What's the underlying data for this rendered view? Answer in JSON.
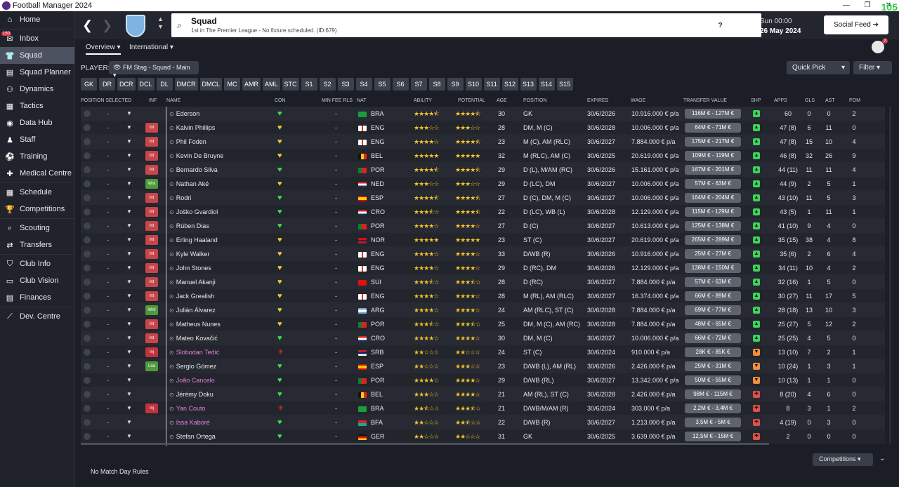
{
  "app": {
    "title": "Football Manager 2024",
    "fps": "105"
  },
  "sidebar": {
    "inbox_badge": "150",
    "items": [
      {
        "label": "Home",
        "icon": "home-icon",
        "glyph": "⌂"
      },
      {
        "label": "Inbox",
        "icon": "inbox-icon",
        "glyph": "✉"
      },
      {
        "label": "Squad",
        "icon": "squad-icon",
        "glyph": "👕"
      },
      {
        "label": "Squad Planner",
        "icon": "planner-icon",
        "glyph": "▤"
      },
      {
        "label": "Dynamics",
        "icon": "dynamics-icon",
        "glyph": "⚇"
      },
      {
        "label": "Tactics",
        "icon": "tactics-icon",
        "glyph": "▦"
      },
      {
        "label": "Data Hub",
        "icon": "datahub-icon",
        "glyph": "◉"
      },
      {
        "label": "Staff",
        "icon": "staff-icon",
        "glyph": "♟"
      },
      {
        "label": "Training",
        "icon": "training-icon",
        "glyph": "⚽"
      },
      {
        "label": "Medical Centre",
        "icon": "medical-icon",
        "glyph": "✚"
      },
      {
        "label": "Schedule",
        "icon": "schedule-icon",
        "glyph": "▦"
      },
      {
        "label": "Competitions",
        "icon": "trophy-icon",
        "glyph": "🏆"
      },
      {
        "label": "Scouting",
        "icon": "scouting-icon",
        "glyph": "⌕"
      },
      {
        "label": "Transfers",
        "icon": "transfers-icon",
        "glyph": "⇄"
      },
      {
        "label": "Club Info",
        "icon": "shield-icon",
        "glyph": "⛉"
      },
      {
        "label": "Club Vision",
        "icon": "vision-icon",
        "glyph": "▭"
      },
      {
        "label": "Finances",
        "icon": "finances-icon",
        "glyph": "▤"
      },
      {
        "label": "Dev. Centre",
        "icon": "devcentre-icon",
        "glyph": "⟋"
      }
    ]
  },
  "header": {
    "title": "Squad",
    "subtitle": "1st in The Premier League - No fixture scheduled. (ID:679)",
    "date_line1": "Sun 00:00",
    "date_line2": "26 May 2024",
    "social": "Social Feed",
    "fm": "FM",
    "avatar_badge": "7"
  },
  "subtabs": {
    "overview": "Overview",
    "international": "International"
  },
  "players_bar": {
    "label": "PLAYERS",
    "view": "FM Stag - Squad - Main",
    "quick_pick": "Quick Pick",
    "filter": "Filter"
  },
  "positions": [
    "GK",
    "DR",
    "DCR",
    "DCL",
    "DL",
    "DMCR",
    "DMCL",
    "MC",
    "AMR",
    "AML",
    "STC",
    "S1",
    "S2",
    "S3",
    "S4",
    "S5",
    "S6",
    "S7",
    "S8",
    "S9",
    "S10",
    "S11",
    "S12",
    "S13",
    "S14",
    "S15"
  ],
  "columns": {
    "position_selected": "POSITION SELECTED",
    "inf": "INF",
    "name": "NAME",
    "con": "CON",
    "min_fee": "MIN FEE RLS",
    "nat": "NAT",
    "ability": "ABILITY",
    "potential": "POTENTIAL",
    "age": "AGE",
    "position": "POSITION",
    "expires": "EXPIRES",
    "wage": "WAGE",
    "transfer_value": "TRANSFER VALUE",
    "shp": "SHP",
    "apps": "APPS",
    "gls": "GLS",
    "ast": "AST",
    "pom": "POM"
  },
  "colors": {
    "accent": "#f2c12e",
    "int_tag": "#c8454a",
    "wnt_tag": "#4f9a3e",
    "con_green": "#3ddc4a",
    "con_yellow": "#e8c53a",
    "shp_green": "#3ed35a",
    "shp_orange": "#f0903a",
    "shp_red": "#e0504a"
  },
  "players": [
    {
      "name": "Ederson",
      "inf": "",
      "pink": false,
      "pos_sel": "-",
      "con": "green",
      "fee": "-",
      "nat": "BRA",
      "ability": 4.5,
      "potential": 4.5,
      "age": "30",
      "position": "GK",
      "expires": "30/6/2026",
      "wage": "10.916.000 € p/a",
      "tv": "116M € - 127M €",
      "shp": "green",
      "apps": "60",
      "gls": "0",
      "ast": "0",
      "pom": "2"
    },
    {
      "name": "Kalvin Phillips",
      "inf": "Int",
      "pink": false,
      "pos_sel": "-",
      "con": "yellow",
      "fee": "-",
      "nat": "ENG",
      "ability": 3,
      "potential": 3,
      "age": "28",
      "position": "DM, M (C)",
      "expires": "30/6/2028",
      "wage": "10.006.000 € p/a",
      "tv": "64M € - 71M €",
      "shp": "green",
      "apps": "47 (8)",
      "gls": "6",
      "ast": "11",
      "pom": "0"
    },
    {
      "name": "Phil Foden",
      "inf": "Int",
      "pink": false,
      "pos_sel": "-",
      "con": "yellow",
      "fee": "-",
      "nat": "ENG",
      "ability": 4,
      "potential": 4.5,
      "age": "23",
      "position": "M (C), AM (RLC)",
      "expires": "30/6/2027",
      "wage": "7.884.000 € p/a",
      "tv": "175M € - 217M €",
      "shp": "green",
      "apps": "47 (8)",
      "gls": "15",
      "ast": "10",
      "pom": "4"
    },
    {
      "name": "Kevin De Bruyne",
      "inf": "Int",
      "pink": false,
      "pos_sel": "-",
      "con": "yellow",
      "fee": "-",
      "nat": "BEL",
      "ability": 5,
      "potential": 5,
      "age": "32",
      "position": "M (RLC), AM (C)",
      "expires": "30/6/2025",
      "wage": "20.619.000 € p/a",
      "tv": "109M € - 119M €",
      "shp": "green",
      "apps": "46 (8)",
      "gls": "32",
      "ast": "26",
      "pom": "9"
    },
    {
      "name": "Bernardo Silva",
      "inf": "Int",
      "pink": false,
      "pos_sel": "-",
      "con": "green",
      "fee": "-",
      "nat": "POR",
      "ability": 4.5,
      "potential": 4.5,
      "age": "29",
      "position": "D (L), M/AM (RC)",
      "expires": "30/6/2026",
      "wage": "15.161.000 € p/a",
      "tv": "167M € - 201M €",
      "shp": "green",
      "apps": "44 (11)",
      "gls": "11",
      "ast": "11",
      "pom": "4"
    },
    {
      "name": "Nathan Aké",
      "inf": "Wnt",
      "pink": false,
      "pos_sel": "-",
      "con": "yellow",
      "fee": "-",
      "nat": "NED",
      "ability": 3,
      "potential": 3,
      "age": "29",
      "position": "D (LC), DM",
      "expires": "30/6/2027",
      "wage": "10.006.000 € p/a",
      "tv": "57M € - 63M €",
      "shp": "green",
      "apps": "44 (9)",
      "gls": "2",
      "ast": "5",
      "pom": "1"
    },
    {
      "name": "Rodri",
      "inf": "Int",
      "pink": false,
      "pos_sel": "-",
      "con": "green",
      "fee": "-",
      "nat": "ESP",
      "ability": 4.5,
      "potential": 4.5,
      "age": "27",
      "position": "D (C), DM, M (C)",
      "expires": "30/6/2027",
      "wage": "10.006.000 € p/a",
      "tv": "164M € - 204M €",
      "shp": "green",
      "apps": "43 (10)",
      "gls": "11",
      "ast": "5",
      "pom": "3"
    },
    {
      "name": "Joško Gvardiol",
      "inf": "Int",
      "pink": false,
      "pos_sel": "-",
      "con": "green",
      "fee": "-",
      "nat": "CRO",
      "ability": 3.5,
      "potential": 4.5,
      "age": "22",
      "position": "D (LC), WB (L)",
      "expires": "30/6/2028",
      "wage": "12.129.000 € p/a",
      "tv": "115M € - 129M €",
      "shp": "green",
      "apps": "43 (5)",
      "gls": "1",
      "ast": "11",
      "pom": "1"
    },
    {
      "name": "Rúben Dias",
      "inf": "Int",
      "pink": false,
      "pos_sel": "-",
      "con": "green",
      "fee": "-",
      "nat": "POR",
      "ability": 4,
      "potential": 4,
      "age": "27",
      "position": "D (C)",
      "expires": "30/6/2027",
      "wage": "10.613.000 € p/a",
      "tv": "125M € - 138M €",
      "shp": "green",
      "apps": "41 (10)",
      "gls": "9",
      "ast": "4",
      "pom": "0"
    },
    {
      "name": "Erling Haaland",
      "inf": "Int",
      "pink": false,
      "pos_sel": "-",
      "con": "yellow",
      "fee": "-",
      "nat": "NOR",
      "ability": 5,
      "potential": 5,
      "age": "23",
      "position": "ST (C)",
      "expires": "30/6/2027",
      "wage": "20.619.000 € p/a",
      "tv": "265M € - 289M €",
      "shp": "green",
      "apps": "35 (15)",
      "gls": "38",
      "ast": "4",
      "pom": "8"
    },
    {
      "name": "Kyle Walker",
      "inf": "Int",
      "pink": false,
      "pos_sel": "-",
      "con": "yellow",
      "fee": "-",
      "nat": "ENG",
      "ability": 4,
      "potential": 4,
      "age": "33",
      "position": "D/WB (R)",
      "expires": "30/6/2026",
      "wage": "10.916.000 € p/a",
      "tv": "25M € - 27M €",
      "shp": "green",
      "apps": "35 (6)",
      "gls": "2",
      "ast": "6",
      "pom": "4"
    },
    {
      "name": "John Stones",
      "inf": "Int",
      "pink": false,
      "pos_sel": "-",
      "con": "yellow",
      "fee": "-",
      "nat": "ENG",
      "ability": 4,
      "potential": 4,
      "age": "29",
      "position": "D (RC), DM",
      "expires": "30/6/2026",
      "wage": "12.129.000 € p/a",
      "tv": "138M € - 150M €",
      "shp": "green",
      "apps": "34 (11)",
      "gls": "10",
      "ast": "4",
      "pom": "2"
    },
    {
      "name": "Manuel Akanji",
      "inf": "Int",
      "pink": false,
      "pos_sel": "-",
      "con": "yellow",
      "fee": "-",
      "nat": "SUI",
      "ability": 3.5,
      "potential": 3.5,
      "age": "28",
      "position": "D (RC)",
      "expires": "30/6/2027",
      "wage": "7.884.000 € p/a",
      "tv": "57M € - 63M €",
      "shp": "green",
      "apps": "32 (16)",
      "gls": "1",
      "ast": "5",
      "pom": "0"
    },
    {
      "name": "Jack Grealish",
      "inf": "Int",
      "pink": false,
      "pos_sel": "-",
      "con": "yellow",
      "fee": "-",
      "nat": "ENG",
      "ability": 4,
      "potential": 4,
      "age": "28",
      "position": "M (RL), AM (RLC)",
      "expires": "30/6/2027",
      "wage": "16.374.000 € p/a",
      "tv": "66M € - 89M €",
      "shp": "green",
      "apps": "30 (27)",
      "gls": "11",
      "ast": "17",
      "pom": "5"
    },
    {
      "name": "Julián Álvarez",
      "inf": "Wnt",
      "pink": false,
      "pos_sel": "-",
      "con": "yellow",
      "fee": "-",
      "nat": "ARG",
      "ability": 4,
      "potential": 4,
      "age": "24",
      "position": "AM (RLC), ST (C)",
      "expires": "30/6/2028",
      "wage": "7.884.000 € p/a",
      "tv": "69M € - 77M €",
      "shp": "green",
      "apps": "28 (18)",
      "gls": "13",
      "ast": "10",
      "pom": "3"
    },
    {
      "name": "Matheus Nunes",
      "inf": "Int",
      "pink": false,
      "pos_sel": "-",
      "con": "yellow",
      "fee": "-",
      "nat": "POR",
      "ability": 3.5,
      "potential": 3.5,
      "age": "25",
      "position": "DM, M (C), AM (RC)",
      "expires": "30/6/2028",
      "wage": "7.884.000 € p/a",
      "tv": "48M € - 65M €",
      "shp": "green",
      "apps": "25 (27)",
      "gls": "5",
      "ast": "12",
      "pom": "2"
    },
    {
      "name": "Mateo Kovačić",
      "inf": "Int",
      "pink": false,
      "pos_sel": "-",
      "con": "green",
      "fee": "-",
      "nat": "CRO",
      "ability": 4,
      "potential": 4,
      "age": "30",
      "position": "DM, M (C)",
      "expires": "30/6/2027",
      "wage": "10.006.000 € p/a",
      "tv": "66M € - 72M €",
      "shp": "green",
      "apps": "25 (25)",
      "gls": "4",
      "ast": "5",
      "pom": "0"
    },
    {
      "name": "Slobodan Tedić",
      "inf": "Inj",
      "pink": true,
      "pos_sel": "-",
      "con": "red",
      "fee": "-",
      "nat": "SRB",
      "ability": 2,
      "potential": 2,
      "age": "24",
      "position": "ST (C)",
      "expires": "30/6/2024",
      "wage": "910.000 € p/a",
      "tv": "28K € - 85K €",
      "shp": "orange",
      "apps": "13 (10)",
      "gls": "7",
      "ast": "2",
      "pom": "1"
    },
    {
      "name": "Sergio Gómez",
      "inf": "Loa",
      "pink": false,
      "pos_sel": "-",
      "con": "green",
      "fee": "-",
      "nat": "ESP",
      "ability": 2,
      "potential": 3,
      "age": "23",
      "position": "D/WB (L), AM (RL)",
      "expires": "30/6/2026",
      "wage": "2.426.000 € p/a",
      "tv": "25M € - 31M €",
      "shp": "orange",
      "apps": "10 (24)",
      "gls": "1",
      "ast": "3",
      "pom": "1"
    },
    {
      "name": "João Cancelo",
      "inf": "",
      "pink": true,
      "pos_sel": "-",
      "con": "green",
      "fee": "-",
      "nat": "POR",
      "ability": 4,
      "potential": 4,
      "age": "29",
      "position": "D/WB (RL)",
      "expires": "30/6/2027",
      "wage": "13.342.000 € p/a",
      "tv": "50M € - 55M €",
      "shp": "orange",
      "apps": "10 (13)",
      "gls": "1",
      "ast": "1",
      "pom": "0"
    },
    {
      "name": "Jérémy Doku",
      "inf": "",
      "pink": false,
      "pos_sel": "-",
      "con": "green",
      "fee": "-",
      "nat": "BEL",
      "ability": 3,
      "potential": 4,
      "age": "21",
      "position": "AM (RL), ST (C)",
      "expires": "30/6/2028",
      "wage": "2.426.000 € p/a",
      "tv": "98M € - 115M €",
      "shp": "red",
      "apps": "8 (20)",
      "gls": "4",
      "ast": "6",
      "pom": "0"
    },
    {
      "name": "Yan Couto",
      "inf": "Inj",
      "pink": true,
      "pos_sel": "-",
      "con": "red",
      "fee": "-",
      "nat": "BRA",
      "ability": 2.5,
      "potential": 3.5,
      "age": "21",
      "position": "D/WB/M/AM (R)",
      "expires": "30/6/2024",
      "wage": "303.000 € p/a",
      "tv": "2,2M € - 3,4M €",
      "shp": "red",
      "apps": "8",
      "gls": "3",
      "ast": "1",
      "pom": "2"
    },
    {
      "name": "Issa Kaboré",
      "inf": "",
      "pink": true,
      "pos_sel": "-",
      "con": "green",
      "fee": "-",
      "nat": "BFA",
      "ability": 2,
      "potential": 2.5,
      "age": "22",
      "position": "D/WB (R)",
      "expires": "30/6/2027",
      "wage": "1.213.000 € p/a",
      "tv": "3,5M € - 5M €",
      "shp": "red",
      "apps": "4 (19)",
      "gls": "0",
      "ast": "3",
      "pom": "0"
    },
    {
      "name": "Stefan Ortega",
      "inf": "",
      "pink": false,
      "pos_sel": "-",
      "con": "green",
      "fee": "-",
      "nat": "GER",
      "ability": 2,
      "potential": 2,
      "age": "31",
      "position": "GK",
      "expires": "30/6/2025",
      "wage": "3.639.000 € p/a",
      "tv": "12,5M € - 15M €",
      "shp": "red",
      "apps": "2",
      "gls": "0",
      "ast": "0",
      "pom": "0"
    }
  ],
  "bottom": {
    "rules": "No Match Day Rules",
    "competitions": "Competitions"
  }
}
